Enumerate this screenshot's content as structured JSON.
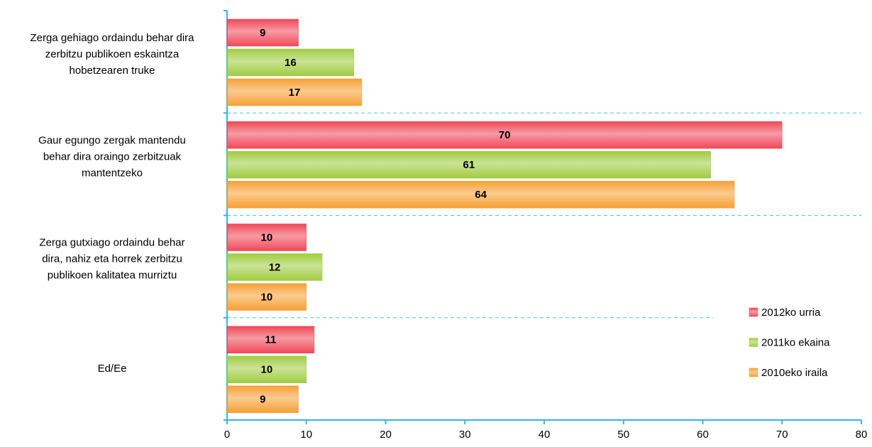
{
  "chart_data": {
    "type": "bar",
    "orientation": "horizontal",
    "categories": [
      [
        "Zerga gehiago ordaindu behar dira",
        "zerbitzu publikoen eskaintza",
        "hobetzearen truke"
      ],
      [
        "Gaur egungo zergak mantendu",
        "behar dira oraingo zerbitzuak",
        "mantentzeko"
      ],
      [
        "Zerga gutxiago ordaindu behar",
        "dira, nahiz eta horrek zerbitzu",
        "publikoen kalitatea murriztu"
      ],
      [
        "Ed/Ee"
      ]
    ],
    "series": [
      {
        "name": "2012ko urria",
        "color": "#f04858",
        "values": [
          9,
          70,
          10,
          11
        ]
      },
      {
        "name": "2011ko ekaina",
        "color": "#a0cc40",
        "values": [
          16,
          61,
          12,
          10
        ]
      },
      {
        "name": "2010eko iraila",
        "color": "#f7a035",
        "values": [
          17,
          64,
          10,
          9
        ]
      }
    ],
    "xlim": [
      0,
      80
    ],
    "xticks": [
      0,
      10,
      20,
      30,
      40,
      50,
      60,
      70,
      80
    ],
    "legend": "right"
  }
}
